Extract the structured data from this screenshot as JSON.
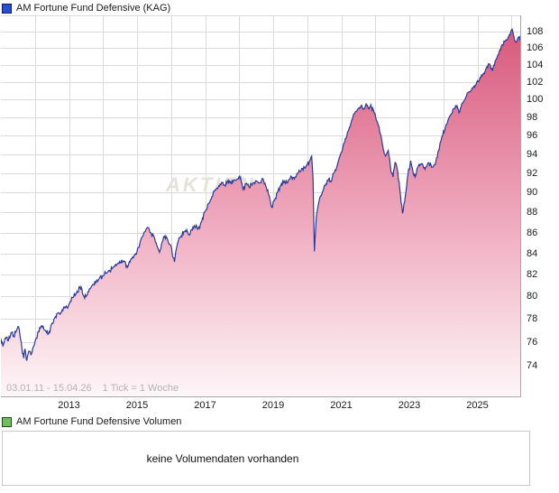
{
  "ui": {
    "price_chart": {
      "title": "AM Fortune Fund Defensive (KAG)",
      "legend_color": "#2150d2",
      "range_label": "03.01.11 - 15.04.26",
      "tick_interval_label": "1 Tick = 1 Woche",
      "watermark": "AKTIEN"
    },
    "volume_chart": {
      "title": "AM Fortune Fund Defensive Volumen",
      "legend_color": "#6fc05c",
      "empty_message": "keine Volumendaten vorhanden"
    }
  },
  "colors": {
    "line": "#2c3a99",
    "fill_top": "#d85a7d",
    "fill_mid": "#f0afc2",
    "fill_bottom": "#fdf6f8",
    "grid": "#dadada",
    "axis_border": "#a8a8a8",
    "watermark": "#e6e2da",
    "range_text": "#b3b3b3"
  },
  "chart_data": [
    {
      "type": "area",
      "title": "AM Fortune Fund Defensive (KAG)",
      "x_range": [
        2011.0,
        2026.29
      ],
      "y_scale": "log",
      "ylim": [
        71.5,
        109.8
      ],
      "y_ticks": [
        74,
        76,
        78,
        80,
        82,
        84,
        86,
        88,
        90,
        92,
        94,
        96,
        98,
        100,
        102,
        104,
        106,
        108
      ],
      "x_tick_labels": [
        "2013",
        "2015",
        "2017",
        "2019",
        "2021",
        "2023",
        "2025"
      ],
      "x_tick_years": [
        2013,
        2015,
        2017,
        2019,
        2021,
        2023,
        2025
      ],
      "grid": true,
      "legend_position": "top-left",
      "series_name": "AM Fortune Fund Defensive (KAG)",
      "points": [
        [
          2011.0,
          76.3
        ],
        [
          2011.06,
          75.6
        ],
        [
          2011.1,
          76.0
        ],
        [
          2011.16,
          76.4
        ],
        [
          2011.22,
          76.1
        ],
        [
          2011.3,
          76.8
        ],
        [
          2011.38,
          76.5
        ],
        [
          2011.45,
          76.9
        ],
        [
          2011.52,
          77.3
        ],
        [
          2011.58,
          76.2
        ],
        [
          2011.63,
          75.0
        ],
        [
          2011.67,
          74.6
        ],
        [
          2011.71,
          75.4
        ],
        [
          2011.76,
          74.4
        ],
        [
          2011.82,
          75.2
        ],
        [
          2011.88,
          74.9
        ],
        [
          2011.94,
          75.5
        ],
        [
          2012.0,
          76.0
        ],
        [
          2012.1,
          76.9
        ],
        [
          2012.2,
          77.4
        ],
        [
          2012.3,
          77.0
        ],
        [
          2012.4,
          76.7
        ],
        [
          2012.5,
          77.6
        ],
        [
          2012.6,
          78.2
        ],
        [
          2012.7,
          78.5
        ],
        [
          2012.8,
          78.8
        ],
        [
          2012.9,
          79.0
        ],
        [
          2013.0,
          79.3
        ],
        [
          2013.1,
          79.9
        ],
        [
          2013.2,
          80.2
        ],
        [
          2013.33,
          80.9
        ],
        [
          2013.42,
          80.1
        ],
        [
          2013.5,
          80.0
        ],
        [
          2013.6,
          80.7
        ],
        [
          2013.7,
          81.1
        ],
        [
          2013.8,
          81.4
        ],
        [
          2013.9,
          81.7
        ],
        [
          2014.0,
          81.9
        ],
        [
          2014.15,
          82.3
        ],
        [
          2014.3,
          82.7
        ],
        [
          2014.45,
          83.1
        ],
        [
          2014.6,
          83.3
        ],
        [
          2014.72,
          82.7
        ],
        [
          2014.85,
          83.5
        ],
        [
          2014.95,
          83.9
        ],
        [
          2015.0,
          84.2
        ],
        [
          2015.1,
          85.2
        ],
        [
          2015.2,
          86.0
        ],
        [
          2015.3,
          86.5
        ],
        [
          2015.4,
          86.0
        ],
        [
          2015.5,
          85.6
        ],
        [
          2015.6,
          84.6
        ],
        [
          2015.66,
          84.1
        ],
        [
          2015.74,
          85.1
        ],
        [
          2015.82,
          85.7
        ],
        [
          2015.9,
          85.3
        ],
        [
          2016.0,
          84.7
        ],
        [
          2016.06,
          83.6
        ],
        [
          2016.1,
          83.2
        ],
        [
          2016.18,
          84.8
        ],
        [
          2016.28,
          85.6
        ],
        [
          2016.38,
          86.1
        ],
        [
          2016.46,
          86.3
        ],
        [
          2016.52,
          85.8
        ],
        [
          2016.6,
          86.3
        ],
        [
          2016.7,
          86.6
        ],
        [
          2016.8,
          86.4
        ],
        [
          2016.9,
          87.1
        ],
        [
          2017.0,
          88.1
        ],
        [
          2017.1,
          88.9
        ],
        [
          2017.2,
          89.6
        ],
        [
          2017.3,
          90.3
        ],
        [
          2017.4,
          90.7
        ],
        [
          2017.5,
          91.0
        ],
        [
          2017.58,
          90.7
        ],
        [
          2017.66,
          91.2
        ],
        [
          2017.75,
          91.0
        ],
        [
          2017.85,
          91.3
        ],
        [
          2017.95,
          91.4
        ],
        [
          2018.04,
          91.6
        ],
        [
          2018.12,
          90.3
        ],
        [
          2018.2,
          90.9
        ],
        [
          2018.3,
          90.5
        ],
        [
          2018.4,
          91.0
        ],
        [
          2018.5,
          91.2
        ],
        [
          2018.6,
          91.0
        ],
        [
          2018.7,
          91.4
        ],
        [
          2018.78,
          90.7
        ],
        [
          2018.88,
          89.7
        ],
        [
          2018.96,
          88.5
        ],
        [
          2019.04,
          89.2
        ],
        [
          2019.12,
          90.0
        ],
        [
          2019.22,
          90.7
        ],
        [
          2019.32,
          91.2
        ],
        [
          2019.42,
          91.0
        ],
        [
          2019.52,
          91.7
        ],
        [
          2019.62,
          91.4
        ],
        [
          2019.72,
          92.0
        ],
        [
          2019.82,
          92.3
        ],
        [
          2019.92,
          92.6
        ],
        [
          2020.0,
          92.9
        ],
        [
          2020.08,
          93.4
        ],
        [
          2020.13,
          93.8
        ],
        [
          2020.17,
          91.5
        ],
        [
          2020.21,
          84.2
        ],
        [
          2020.27,
          87.6
        ],
        [
          2020.35,
          89.2
        ],
        [
          2020.45,
          90.1
        ],
        [
          2020.55,
          90.9
        ],
        [
          2020.63,
          91.4
        ],
        [
          2020.7,
          91.1
        ],
        [
          2020.78,
          92.0
        ],
        [
          2020.88,
          92.8
        ],
        [
          2021.0,
          94.2
        ],
        [
          2021.1,
          95.3
        ],
        [
          2021.2,
          96.5
        ],
        [
          2021.3,
          97.6
        ],
        [
          2021.4,
          98.5
        ],
        [
          2021.5,
          99.0
        ],
        [
          2021.58,
          99.3
        ],
        [
          2021.65,
          98.9
        ],
        [
          2021.73,
          99.5
        ],
        [
          2021.8,
          99.0
        ],
        [
          2021.87,
          99.4
        ],
        [
          2021.95,
          98.7
        ],
        [
          2022.05,
          97.6
        ],
        [
          2022.15,
          96.2
        ],
        [
          2022.23,
          94.6
        ],
        [
          2022.3,
          93.8
        ],
        [
          2022.38,
          94.4
        ],
        [
          2022.46,
          92.2
        ],
        [
          2022.52,
          91.6
        ],
        [
          2022.58,
          93.1
        ],
        [
          2022.64,
          92.5
        ],
        [
          2022.72,
          90.4
        ],
        [
          2022.8,
          87.9
        ],
        [
          2022.88,
          89.6
        ],
        [
          2022.96,
          91.9
        ],
        [
          2023.04,
          93.3
        ],
        [
          2023.1,
          92.3
        ],
        [
          2023.17,
          91.6
        ],
        [
          2023.26,
          92.7
        ],
        [
          2023.36,
          93.0
        ],
        [
          2023.46,
          92.4
        ],
        [
          2023.56,
          93.1
        ],
        [
          2023.66,
          92.6
        ],
        [
          2023.76,
          92.9
        ],
        [
          2023.86,
          94.4
        ],
        [
          2023.96,
          95.9
        ],
        [
          2024.06,
          96.9
        ],
        [
          2024.16,
          97.9
        ],
        [
          2024.24,
          98.4
        ],
        [
          2024.32,
          99.0
        ],
        [
          2024.4,
          99.3
        ],
        [
          2024.46,
          98.5
        ],
        [
          2024.56,
          99.6
        ],
        [
          2024.66,
          100.3
        ],
        [
          2024.76,
          100.9
        ],
        [
          2024.86,
          101.3
        ],
        [
          2024.96,
          101.7
        ],
        [
          2025.06,
          102.3
        ],
        [
          2025.16,
          102.9
        ],
        [
          2025.26,
          103.6
        ],
        [
          2025.36,
          104.1
        ],
        [
          2025.44,
          103.3
        ],
        [
          2025.54,
          104.6
        ],
        [
          2025.64,
          105.6
        ],
        [
          2025.72,
          106.4
        ],
        [
          2025.8,
          106.8
        ],
        [
          2025.88,
          107.0
        ],
        [
          2025.96,
          107.6
        ],
        [
          2026.02,
          108.3
        ],
        [
          2026.08,
          107.2
        ],
        [
          2026.14,
          106.7
        ],
        [
          2026.2,
          107.3
        ],
        [
          2026.29,
          107.0
        ]
      ]
    },
    {
      "type": "area",
      "title": "AM Fortune Fund Defensive Volumen",
      "note": "keine Volumendaten vorhanden",
      "points": []
    }
  ]
}
